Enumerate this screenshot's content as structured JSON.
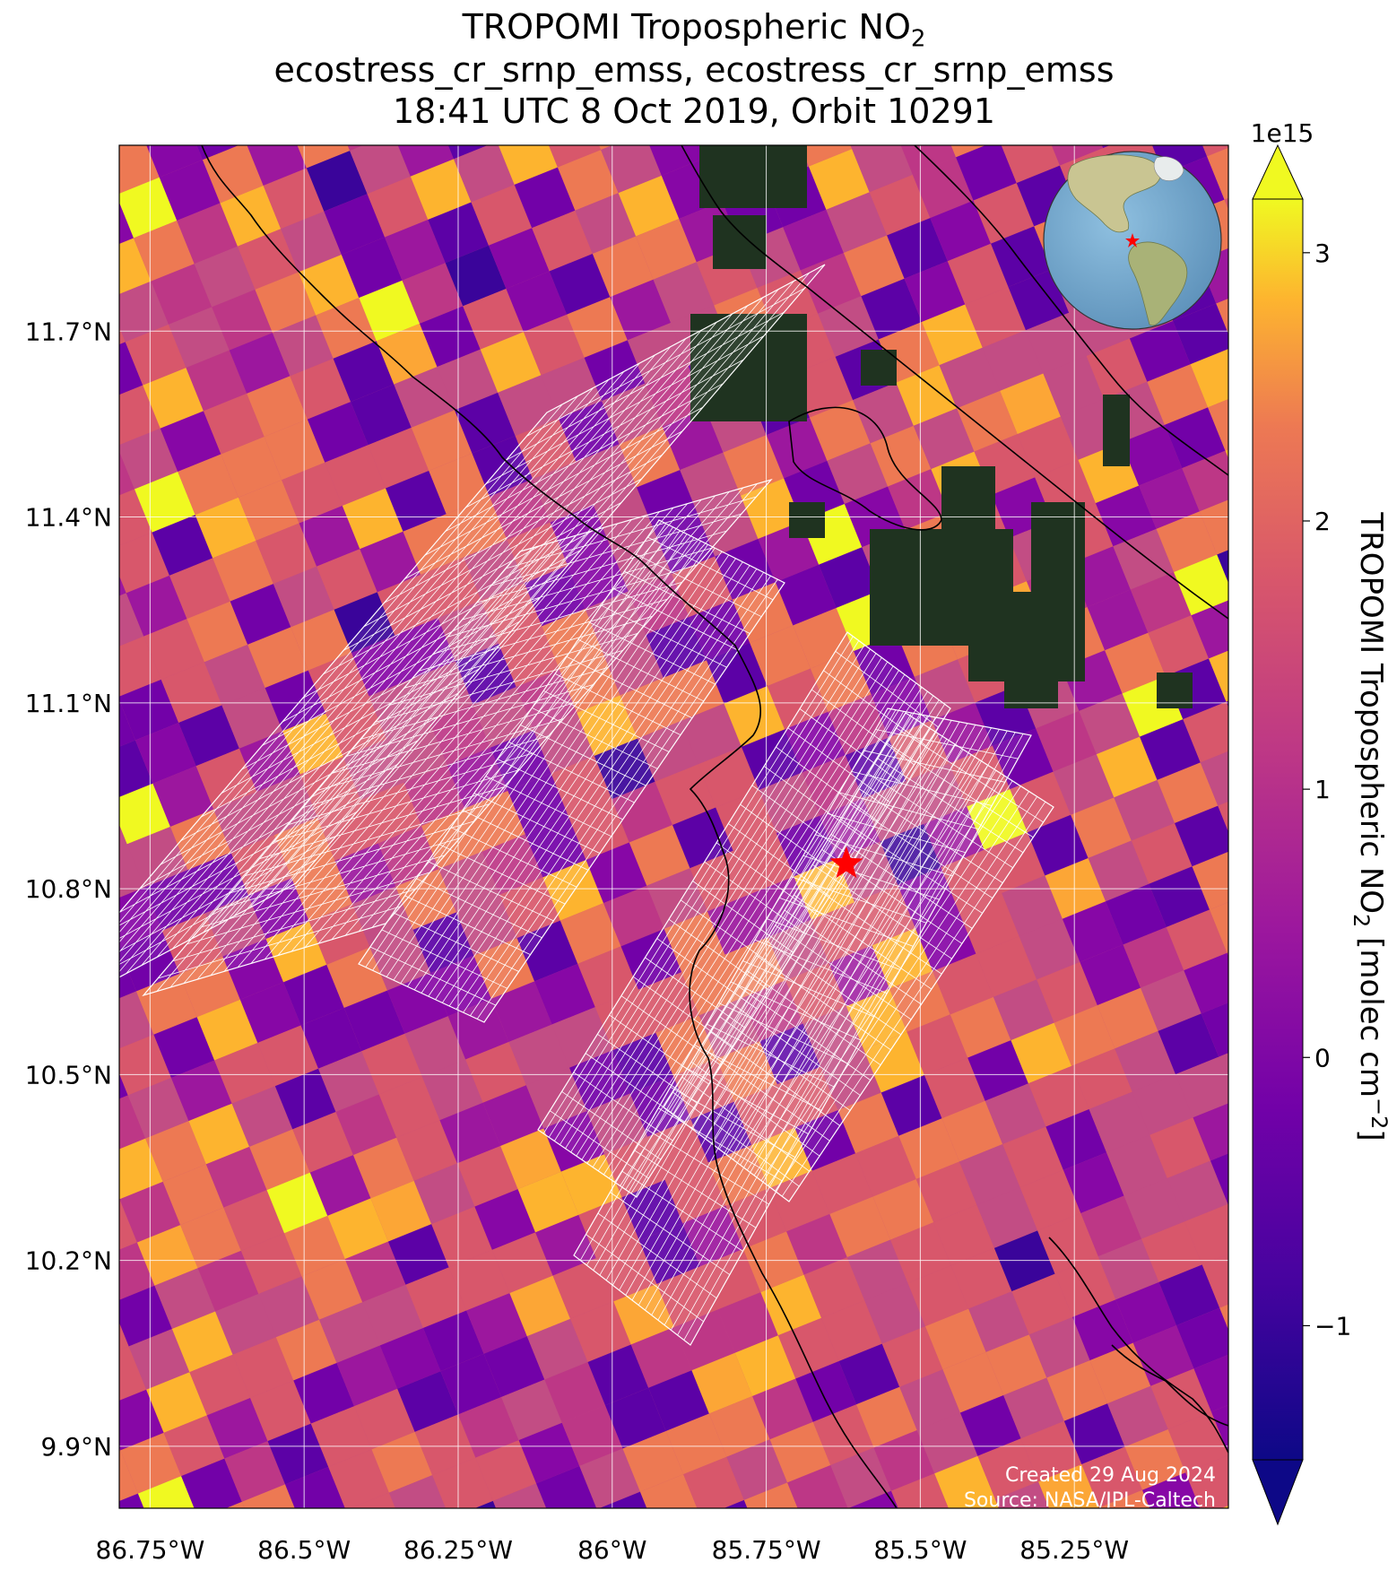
{
  "title": {
    "line1_main": "TROPOMI Tropospheric NO",
    "line1_sub": "2",
    "line2": "ecostress_cr_srnp_emss, ecostress_cr_srnp_emss",
    "line3": "18:41 UTC 8 Oct 2019, Orbit 10291"
  },
  "axes": {
    "x_ticks": [
      "86.75°W",
      "86.5°W",
      "86.25°W",
      "86°W",
      "85.75°W",
      "85.5°W",
      "85.25°W"
    ],
    "x_tick_values": [
      -86.75,
      -86.5,
      -86.25,
      -86.0,
      -85.75,
      -85.5,
      -85.25
    ],
    "y_ticks": [
      "11.7°N",
      "11.4°N",
      "11.1°N",
      "10.8°N",
      "10.5°N",
      "10.2°N",
      "9.9°N"
    ],
    "y_tick_values": [
      11.7,
      11.4,
      11.1,
      10.8,
      10.5,
      10.2,
      9.9
    ],
    "lon_range": [
      -86.8,
      -85.0
    ],
    "lat_range": [
      9.8,
      12.0
    ],
    "grid": true
  },
  "colorbar": {
    "label_main": "TROPOMI Tropospheric NO",
    "label_sub": "2",
    "label_unit_a": " [molec cm",
    "label_unit_sup": "−2",
    "label_unit_b": "]",
    "exponent": "1e15",
    "ticks": [
      "3",
      "2",
      "1",
      "0",
      "−1"
    ],
    "tick_values": [
      3,
      2,
      1,
      0,
      -1
    ],
    "range": [
      -1.5,
      3.2
    ],
    "extend": "both",
    "colormap": "plasma"
  },
  "site_marker": {
    "name": "star",
    "lon": -85.62,
    "lat": 10.84,
    "color": "#ff0000"
  },
  "credits": {
    "created": "Created 29 Aug 2024",
    "source": "Source: NASA/JPL-Caltech"
  },
  "colors": {
    "land_background": "#1f3320",
    "ocean_inset": "#6fa6cf",
    "grid": "#ffffff",
    "coastline": "#000000",
    "footprint": "#ffffff",
    "marker": "#ff0000"
  }
}
